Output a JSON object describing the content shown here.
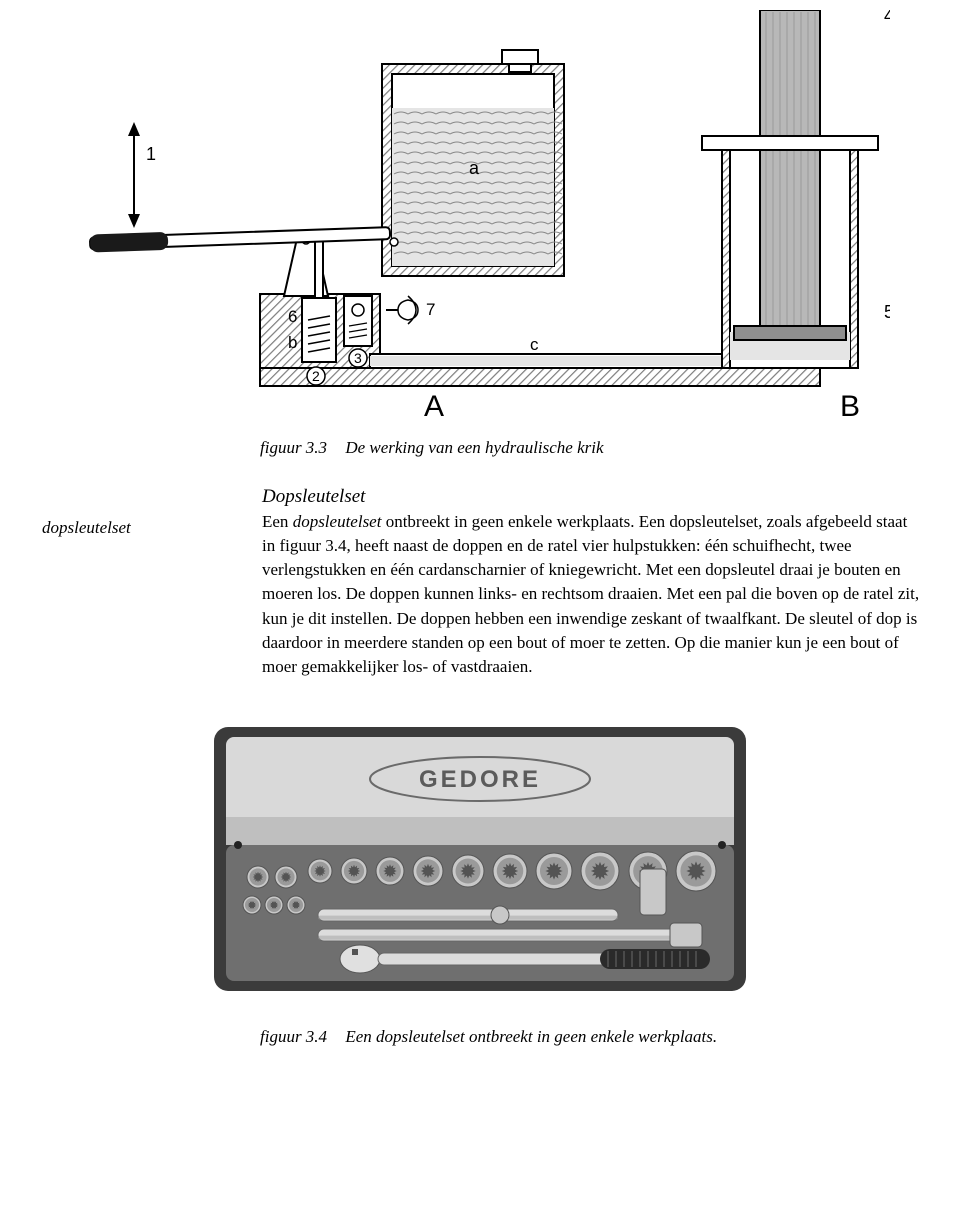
{
  "figure1": {
    "caption_num": "figuur 3.3",
    "caption_text": "De werking van een hydraulische krik",
    "labels": {
      "n1": "1",
      "n2": "2",
      "n3": "3",
      "n4": "4",
      "n5": "5",
      "n6": "6",
      "n7": "7",
      "la": "a",
      "lb": "b",
      "lc": "c",
      "A": "A",
      "B": "B"
    },
    "colors": {
      "stroke": "#000000",
      "fluid": "#e5e5e5",
      "hatch": "#7d7d7d",
      "piston": "#b8b8b8",
      "piston_dark": "#8f8f8f",
      "handle": "#1a1a1a",
      "body": "#ffffff",
      "bg": "#ffffff"
    }
  },
  "side_label": "dopsleutelset",
  "section_title": "Dopsleutelset",
  "body_parts": {
    "p1a": "Een ",
    "p1_em": "dopsleutelset",
    "p1b": " ontbreekt in geen enkele werkplaats. Een dopsleutelset, zoals afgebeeld staat in figuur 3.4, heeft naast de doppen en de ratel vier hulpstukken: één schuifhecht, twee verlengstukken en één cardanscharnier of kniegewricht. Met een dopsleutel draai je bouten en moeren los. De doppen kunnen links- en rechtsom draaien. Met een pal die boven op de ratel zit, kun je dit instellen. De doppen hebben een inwendige zeskant of twaalfkant. De sleutel of dop is daardoor in meerdere standen op een bout of moer te zetten. Op die manier kun je een bout of moer gemakkelijker los- of vastdraaien."
  },
  "figure2": {
    "caption_num": "figuur 3.4",
    "caption_text": "Een dopsleutelset ontbreekt in geen enkele werkplaats.",
    "brand": "GEDORE",
    "colors": {
      "case_outer": "#3b3b3b",
      "case_lid": "#d9d9d9",
      "case_lid_shadow": "#bfbfbf",
      "case_base": "#6f6f6f",
      "socket_body": "#c8c8c8",
      "socket_shadow": "#9a9a9a",
      "socket_hole": "#545454",
      "bar": "#dcdcdc",
      "bar_shadow": "#9f9f9f",
      "ratchet_head": "#e0e0e0",
      "handle_grip": "#2a2a2a",
      "brand_text": "#5b5b5b",
      "brand_oval_stroke": "#6a6a6a"
    },
    "sockets_top": [
      {
        "r": 12
      },
      {
        "r": 13
      },
      {
        "r": 14
      },
      {
        "r": 15
      },
      {
        "r": 16
      },
      {
        "r": 17
      },
      {
        "r": 18
      },
      {
        "r": 19
      },
      {
        "r": 19
      },
      {
        "r": 20
      }
    ],
    "sockets_left": [
      {
        "r": 11
      },
      {
        "r": 11
      },
      {
        "r": 9
      },
      {
        "r": 9
      },
      {
        "r": 9
      }
    ]
  }
}
